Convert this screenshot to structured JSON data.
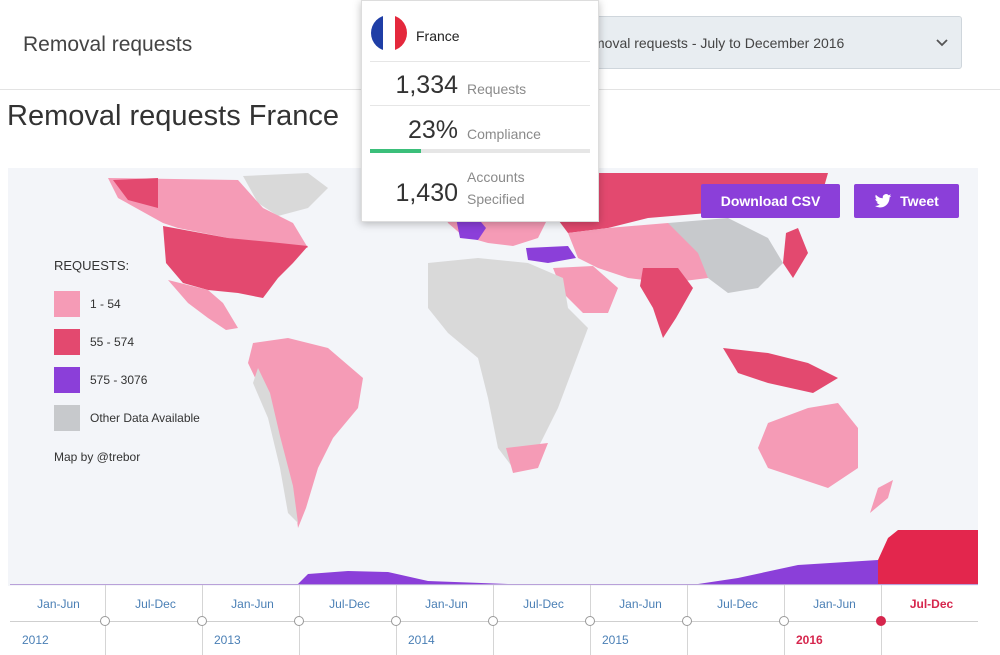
{
  "header": {
    "title": "Removal requests",
    "period_select": {
      "selected": "moval requests - July to December 2016"
    }
  },
  "page_title": "Removal requests France",
  "buttons": {
    "download_csv": "Download CSV",
    "tweet": "Tweet"
  },
  "legend": {
    "title": "REQUESTS:",
    "items": [
      {
        "label": "1 - 54",
        "color": "#f59bb6"
      },
      {
        "label": "55 - 574",
        "color": "#e3496f"
      },
      {
        "label": "575 - 3076",
        "color": "#8b3fd9"
      },
      {
        "label": "Other Data Available",
        "color": "#c7c9cc"
      }
    ],
    "credit": "Map by @trebor"
  },
  "popup": {
    "country": "France",
    "requests_value": "1,334",
    "requests_label": "Requests",
    "compliance_value": "23%",
    "compliance_label": "Compliance",
    "compliance_fraction": 0.23,
    "accounts_value": "1,430",
    "accounts_label_1": "Accounts",
    "accounts_label_2": "Specified",
    "flag_colors": [
      "#1f3ea6",
      "#ffffff",
      "#e4283c"
    ]
  },
  "timeline": {
    "halves": [
      "Jan-Jun",
      "Jul-Dec",
      "Jan-Jun",
      "Jul-Dec",
      "Jan-Jun",
      "Jul-Dec",
      "Jan-Jun",
      "Jul-Dec",
      "Jan-Jun",
      "Jul-Dec"
    ],
    "years": [
      "2012",
      "2013",
      "2014",
      "2015",
      "2016"
    ],
    "active_index": 9
  },
  "colors": {
    "accent_purple": "#8b3fd9",
    "accent_red": "#d6264d"
  }
}
